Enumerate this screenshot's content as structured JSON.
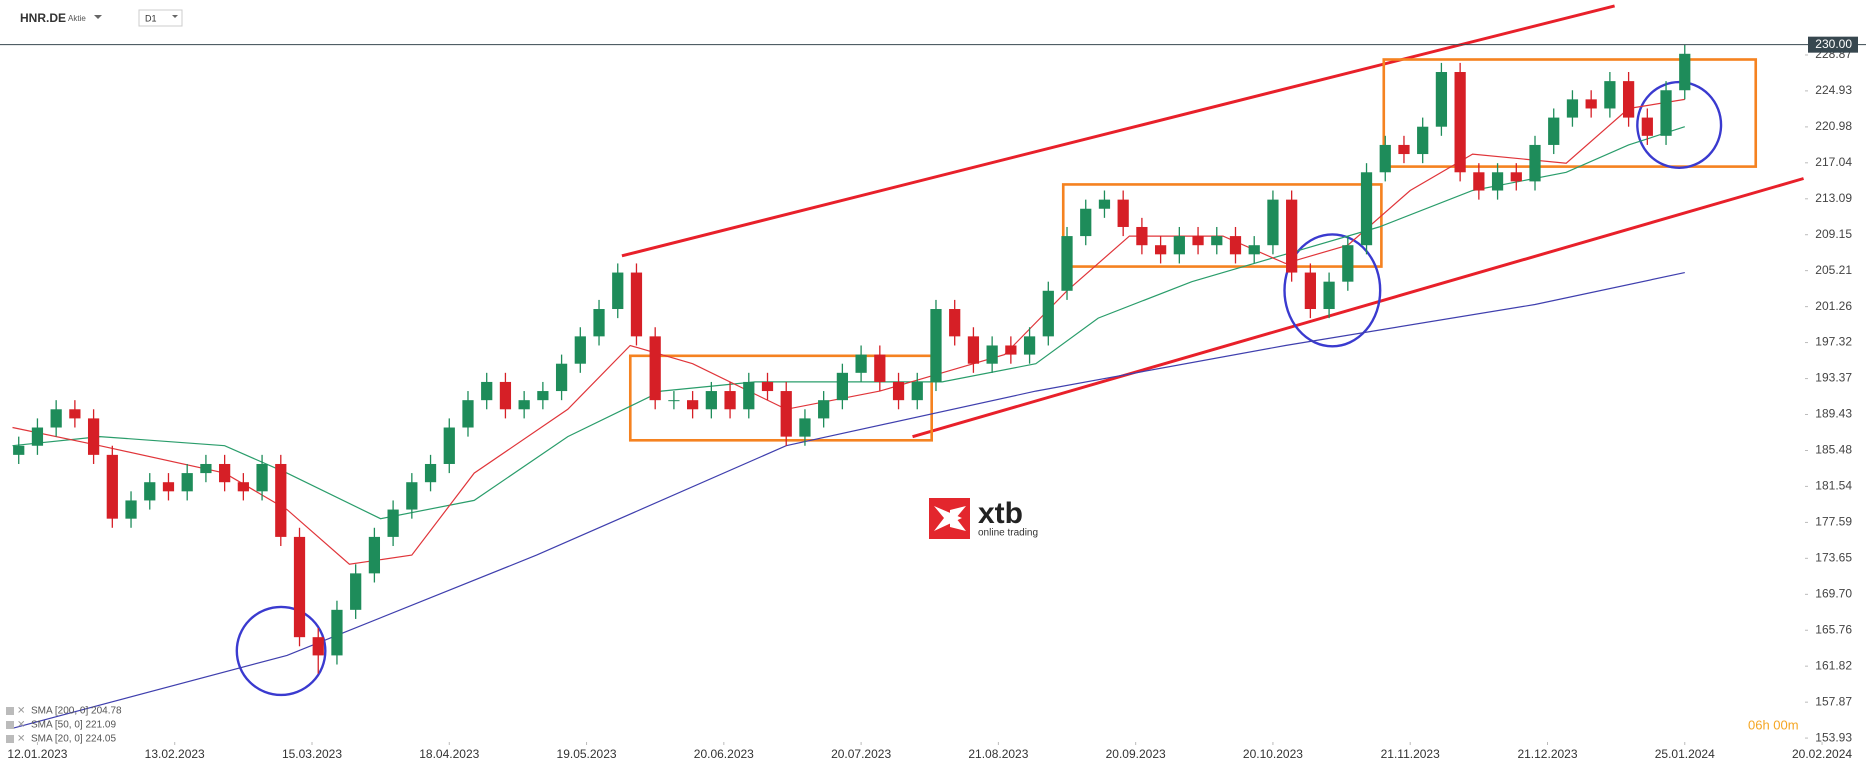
{
  "chart_data": {
    "type": "candlestick",
    "symbol": "HNR.DE",
    "instrument_type": "Aktie",
    "timeframe": "D1",
    "countdown": "06h 00m",
    "watermark": {
      "brand": "xtb",
      "tagline": "online trading"
    },
    "up_color": "#1e8c5a",
    "down_color": "#d61f26",
    "x": [
      -3,
      0,
      3,
      6,
      9,
      12,
      15,
      18,
      21,
      24,
      27,
      30,
      33,
      36,
      39,
      42,
      45,
      48,
      51,
      54,
      57,
      60,
      63,
      66,
      69,
      72,
      75,
      78,
      81,
      84,
      87,
      90,
      93,
      96,
      99,
      102,
      105,
      108,
      111,
      114,
      117,
      120,
      123,
      126,
      129,
      132,
      135,
      138,
      141,
      144,
      147,
      150,
      153,
      156,
      159,
      162,
      165,
      168,
      171,
      174,
      177,
      180,
      183,
      186,
      189,
      192,
      195,
      198,
      201,
      204,
      207,
      210,
      213,
      216,
      219,
      222,
      225,
      228,
      231,
      234,
      237,
      240,
      243,
      246,
      249,
      252,
      255,
      258,
      261,
      264
    ],
    "open": [
      185,
      186,
      188,
      190,
      189,
      185,
      178,
      180,
      182,
      181,
      183,
      184,
      182,
      181,
      184,
      176,
      165,
      163,
      168,
      172,
      176,
      179,
      182,
      184,
      188,
      191,
      193,
      190,
      191,
      192,
      195,
      198,
      201,
      205,
      198,
      191,
      191,
      190,
      192,
      190,
      193,
      192,
      187,
      189,
      191,
      194,
      196,
      193,
      191,
      193,
      201,
      198,
      195,
      197,
      196,
      198,
      203,
      209,
      212,
      213,
      210,
      208,
      207,
      209,
      208,
      209,
      207,
      208,
      213,
      205,
      201,
      204,
      208,
      216,
      219,
      218,
      221,
      227,
      216,
      214,
      216,
      215,
      219,
      222,
      224,
      223,
      226,
      222,
      220,
      225
    ],
    "high": [
      187,
      189,
      191,
      191,
      190,
      186,
      181,
      183,
      183,
      184,
      185,
      185,
      183,
      185,
      185,
      177,
      166,
      169,
      173,
      177,
      180,
      183,
      185,
      189,
      192,
      194,
      194,
      192,
      193,
      196,
      199,
      202,
      206,
      206,
      199,
      192,
      192,
      193,
      193,
      194,
      194,
      193,
      190,
      192,
      195,
      197,
      197,
      194,
      194,
      202,
      202,
      199,
      198,
      198,
      199,
      204,
      210,
      213,
      214,
      214,
      211,
      209,
      210,
      210,
      210,
      210,
      209,
      214,
      214,
      206,
      205,
      209,
      217,
      220,
      220,
      222,
      228,
      228,
      217,
      217,
      217,
      220,
      223,
      225,
      225,
      227,
      227,
      223,
      226,
      230
    ],
    "low": [
      184,
      185,
      187,
      188,
      184,
      177,
      177,
      179,
      180,
      180,
      182,
      181,
      180,
      180,
      175,
      164,
      161,
      162,
      167,
      171,
      175,
      178,
      181,
      183,
      187,
      190,
      189,
      189,
      190,
      191,
      194,
      197,
      200,
      197,
      190,
      190,
      189,
      189,
      189,
      189,
      191,
      186,
      186,
      188,
      190,
      193,
      192,
      190,
      190,
      192,
      197,
      194,
      194,
      195,
      195,
      197,
      202,
      208,
      211,
      209,
      207,
      206,
      206,
      207,
      207,
      206,
      206,
      207,
      204,
      200,
      200,
      203,
      207,
      215,
      217,
      217,
      220,
      215,
      213,
      213,
      214,
      214,
      218,
      221,
      222,
      222,
      221,
      219,
      219,
      224
    ],
    "close": [
      186,
      188,
      190,
      189,
      185,
      178,
      180,
      182,
      181,
      183,
      184,
      182,
      181,
      184,
      176,
      165,
      163,
      168,
      172,
      176,
      179,
      182,
      184,
      188,
      191,
      193,
      190,
      191,
      192,
      195,
      198,
      201,
      205,
      198,
      191,
      191,
      190,
      192,
      190,
      193,
      192,
      187,
      189,
      191,
      194,
      196,
      193,
      191,
      193,
      201,
      198,
      195,
      197,
      196,
      198,
      203,
      209,
      212,
      213,
      210,
      208,
      207,
      209,
      208,
      209,
      207,
      208,
      213,
      205,
      201,
      204,
      208,
      216,
      219,
      218,
      221,
      227,
      216,
      214,
      216,
      215,
      219,
      222,
      224,
      223,
      226,
      222,
      220,
      225,
      229
    ],
    "series": [
      {
        "name": "SMA [200, 0] 204.78",
        "color": "#3f3fae",
        "x": [
          -4,
          40,
          80,
          120,
          160,
          200,
          240,
          264
        ],
        "values": [
          155,
          163,
          174,
          186,
          192,
          197,
          201.5,
          205
        ]
      },
      {
        "name": "SMA [50, 0] 221.09",
        "color": "#2a9d6b",
        "x": [
          -4,
          10,
          30,
          40,
          55,
          70,
          85,
          100,
          115,
          130,
          145,
          160,
          170,
          185,
          200,
          215,
          230,
          245,
          255,
          264
        ],
        "values": [
          186,
          187,
          186,
          183,
          178,
          180,
          187,
          192,
          193,
          193,
          193,
          195,
          200,
          204,
          207,
          210,
          214,
          216,
          219,
          221
        ]
      },
      {
        "name": "SMA [20, 0] 224.05",
        "color": "#e0353a",
        "x": [
          -4,
          10,
          30,
          40,
          50,
          60,
          70,
          85,
          95,
          105,
          120,
          135,
          145,
          155,
          165,
          175,
          190,
          200,
          210,
          220,
          230,
          245,
          255,
          264
        ],
        "values": [
          188,
          186,
          183,
          179,
          173,
          174,
          183,
          190,
          197,
          195,
          190,
          192,
          194,
          196,
          203,
          209,
          209,
          206,
          208,
          214,
          218,
          217,
          223,
          224
        ]
      }
    ],
    "price_line": {
      "value": 230,
      "label": "230.00"
    },
    "xlim": [
      -6,
      290
    ],
    "ylim": [
      153.5,
      234.9
    ],
    "yticks": [
      153.93,
      157.87,
      161.82,
      165.76,
      {
        "value": 169.7,
        "label": "169.70"
      },
      173.65,
      177.59,
      181.54,
      185.48,
      189.43,
      193.37,
      197.32,
      201.26,
      205.21,
      209.15,
      213.09,
      217.04,
      220.98,
      224.93,
      228.87
    ],
    "xticks": [
      {
        "value": 0,
        "label": "12.01.2023"
      },
      {
        "value": 22,
        "label": "13.02.2023"
      },
      {
        "value": 44,
        "label": "15.03.2023"
      },
      {
        "value": 66,
        "label": "18.04.2023"
      },
      {
        "value": 88,
        "label": "19.05.2023"
      },
      {
        "value": 110,
        "label": "20.06.2023"
      },
      {
        "value": 132,
        "label": "20.07.2023"
      },
      {
        "value": 154,
        "label": "21.08.2023"
      },
      {
        "value": 176,
        "label": "20.09.2023"
      },
      {
        "value": 198,
        "label": "20.10.2023"
      },
      {
        "value": 220,
        "label": "21.11.2023"
      },
      {
        "value": 242,
        "label": "21.12.2023"
      },
      {
        "value": 264,
        "label": "25.01.2024"
      },
      {
        "value": 286,
        "label": "20.02.2024"
      }
    ],
    "grid": false
  }
}
